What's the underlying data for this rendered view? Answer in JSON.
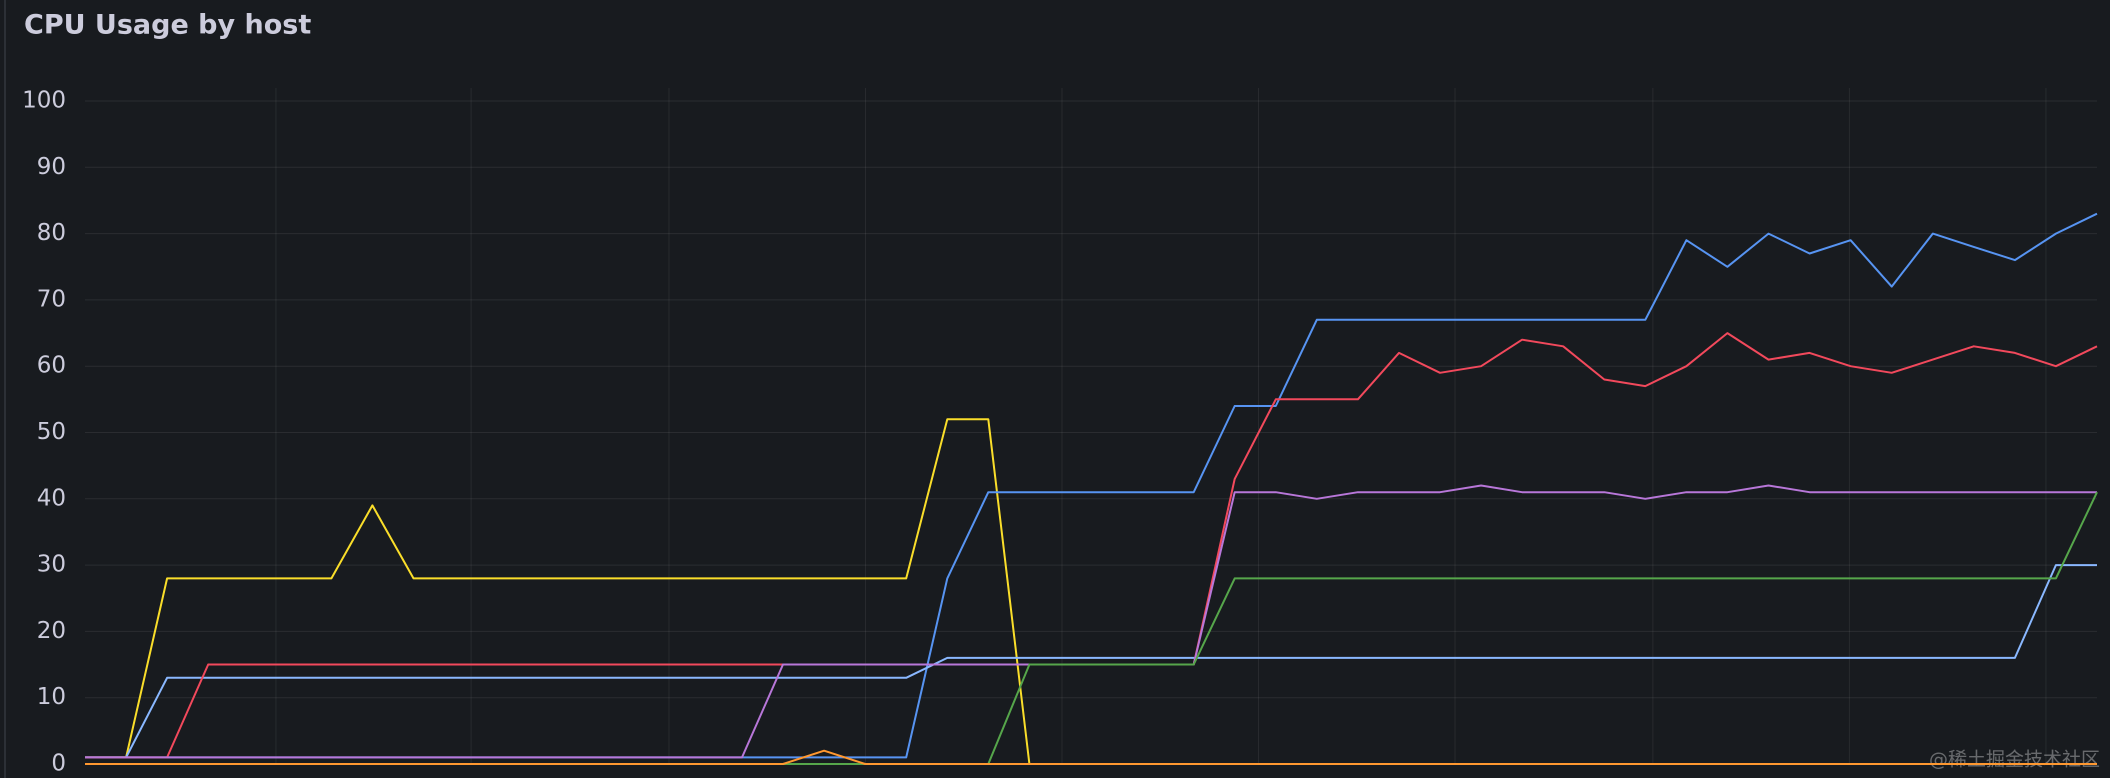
{
  "chart_data": {
    "type": "line",
    "title": "CPU Usage by host",
    "ylim": [
      0,
      100
    ],
    "yticks": [
      0,
      10,
      20,
      30,
      40,
      50,
      60,
      70,
      80,
      90,
      100
    ],
    "grid": true,
    "watermark": "@稀土掘金技术社区",
    "series": [
      {
        "color": "#fade2a",
        "values": [
          1,
          1,
          28,
          28,
          28,
          28,
          28,
          39,
          28,
          28,
          28,
          28,
          28,
          28,
          28,
          28,
          28,
          28,
          28,
          28,
          28,
          52,
          52,
          0,
          0,
          0,
          0,
          0,
          0,
          0,
          0,
          0,
          0,
          0,
          0,
          0,
          0,
          0,
          0,
          0,
          0,
          0,
          0,
          0,
          0,
          0,
          0,
          0,
          0,
          0
        ]
      },
      {
        "color": "#5794f2",
        "values": [
          1,
          1,
          1,
          1,
          1,
          1,
          1,
          1,
          1,
          1,
          1,
          1,
          1,
          1,
          1,
          1,
          1,
          1,
          1,
          1,
          1,
          28,
          41,
          41,
          41,
          41,
          41,
          41,
          54,
          54,
          67,
          67,
          67,
          67,
          67,
          67,
          67,
          67,
          67,
          79,
          75,
          80,
          77,
          79,
          72,
          80,
          78,
          76,
          80,
          83
        ]
      },
      {
        "color": "#8ab8ff",
        "values": [
          1,
          1,
          13,
          13,
          13,
          13,
          13,
          13,
          13,
          13,
          13,
          13,
          13,
          13,
          13,
          13,
          13,
          13,
          13,
          13,
          13,
          16,
          16,
          16,
          16,
          16,
          16,
          16,
          16,
          16,
          16,
          16,
          16,
          16,
          16,
          16,
          16,
          16,
          16,
          16,
          16,
          16,
          16,
          16,
          16,
          16,
          16,
          16,
          30,
          30
        ]
      },
      {
        "color": "#f2495c",
        "values": [
          1,
          1,
          1,
          15,
          15,
          15,
          15,
          15,
          15,
          15,
          15,
          15,
          15,
          15,
          15,
          15,
          15,
          15,
          15,
          15,
          15,
          15,
          15,
          15,
          15,
          15,
          15,
          15,
          43,
          55,
          55,
          55,
          62,
          59,
          60,
          64,
          63,
          58,
          57,
          60,
          65,
          61,
          62,
          60,
          59,
          61,
          63,
          62,
          60,
          63
        ]
      },
      {
        "color": "#b877d9",
        "values": [
          1,
          1,
          1,
          1,
          1,
          1,
          1,
          1,
          1,
          1,
          1,
          1,
          1,
          1,
          1,
          1,
          1,
          15,
          15,
          15,
          15,
          15,
          15,
          15,
          15,
          15,
          15,
          15,
          41,
          41,
          40,
          41,
          41,
          41,
          42,
          41,
          41,
          41,
          40,
          41,
          41,
          42,
          41,
          41,
          41,
          41,
          41,
          41,
          41,
          41
        ]
      },
      {
        "color": "#56a64b",
        "values": [
          0,
          0,
          0,
          0,
          0,
          0,
          0,
          0,
          0,
          0,
          0,
          0,
          0,
          0,
          0,
          0,
          0,
          0,
          0,
          0,
          0,
          0,
          0,
          15,
          15,
          15,
          15,
          15,
          28,
          28,
          28,
          28,
          28,
          28,
          28,
          28,
          28,
          28,
          28,
          28,
          28,
          28,
          28,
          28,
          28,
          28,
          28,
          28,
          28,
          41
        ]
      },
      {
        "color": "#ff9830",
        "values": [
          0,
          0,
          0,
          0,
          0,
          0,
          0,
          0,
          0,
          0,
          0,
          0,
          0,
          0,
          0,
          0,
          0,
          0,
          2,
          0,
          0,
          0,
          0,
          0,
          0,
          0,
          0,
          0,
          0,
          0,
          0,
          0,
          0,
          0,
          0,
          0,
          0,
          0,
          0,
          0,
          0,
          0,
          0,
          0,
          0,
          0,
          0,
          0,
          0,
          0
        ]
      }
    ]
  }
}
